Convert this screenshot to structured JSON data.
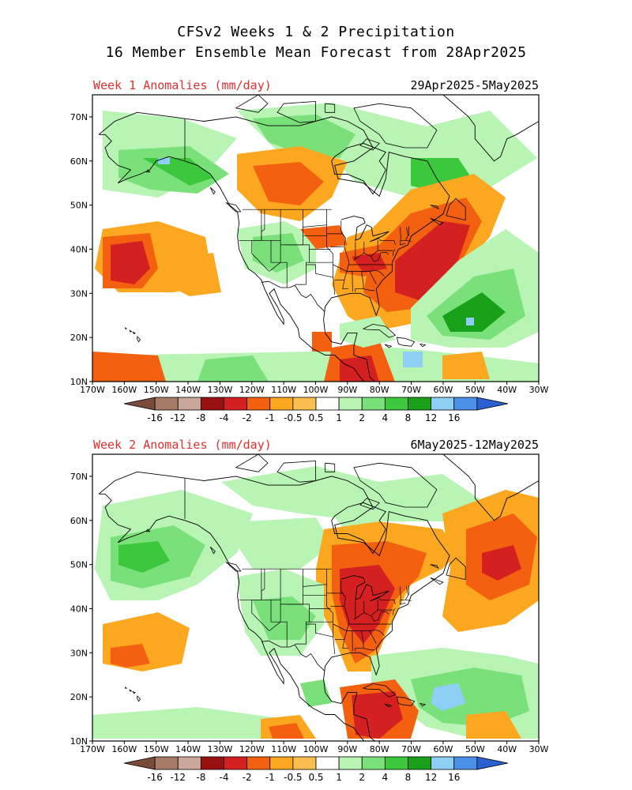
{
  "header": {
    "title_line1": "CFSv2 Weeks 1 & 2 Precipitation",
    "title_line2": "16 Member Ensemble Mean Forecast from 28Apr2025"
  },
  "panels": [
    {
      "id": "week1",
      "title": "Week 1 Anomalies (mm/day)",
      "date_range": "29Apr2025-5May2025"
    },
    {
      "id": "week2",
      "title": "Week 2 Anomalies (mm/day)",
      "date_range": "6May2025-12May2025"
    }
  ],
  "axes": {
    "lat_labels": [
      "70N",
      "60N",
      "50N",
      "40N",
      "30N",
      "20N",
      "10N"
    ],
    "lon_labels": [
      "170W",
      "160W",
      "150W",
      "140W",
      "130W",
      "120W",
      "110W",
      "100W",
      "90W",
      "80W",
      "70W",
      "60W",
      "50W",
      "40W",
      "30W"
    ]
  },
  "colorbar": {
    "labels": [
      "-16",
      "-12",
      "-8",
      "-4",
      "-2",
      "-1",
      "-0.5",
      "0.5",
      "1",
      "2",
      "4",
      "8",
      "12",
      "16"
    ],
    "colors": [
      "#7a4a3a",
      "#a87a68",
      "#caa79a",
      "#9a1010",
      "#d42020",
      "#f26010",
      "#fba820",
      "#f9c050",
      "#ffffff",
      "#b8f4b4",
      "#7ae07a",
      "#3cc83c",
      "#18a018",
      "#8ecff5",
      "#4a90e8",
      "#2a60d0"
    ]
  },
  "palette": {
    "dry_strong": "#d42020",
    "dry_moderate": "#f26010",
    "dry_light": "#fba820",
    "wet_light": "#b8f4b4",
    "wet_moderate": "#7ae07a",
    "wet_strong": "#3cc83c",
    "wet_very": "#18a018",
    "wet_extreme": "#8ecff5"
  }
}
